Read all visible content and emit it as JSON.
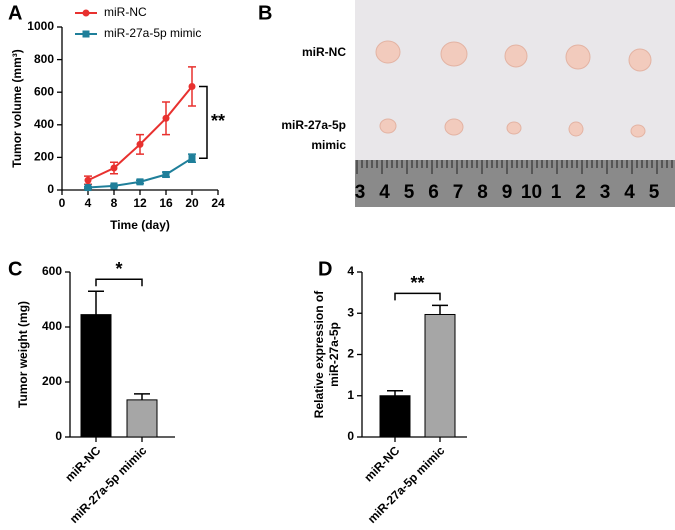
{
  "chart_data": [
    {
      "panel_label": "A",
      "type": "line",
      "xlabel": "Time (day)",
      "ylabel": "Tumor volume (mm³)",
      "x": [
        4,
        8,
        12,
        16,
        20
      ],
      "xlim": [
        0,
        24
      ],
      "xticks": [
        0,
        4,
        8,
        12,
        16,
        20,
        24
      ],
      "ylim": [
        0,
        1000
      ],
      "yticks": [
        0,
        200,
        400,
        600,
        800,
        1000
      ],
      "series": [
        {
          "name": "miR-NC",
          "color": "#e8312f",
          "values": [
            60,
            135,
            280,
            440,
            635
          ],
          "errors": [
            25,
            35,
            60,
            100,
            120
          ]
        },
        {
          "name": "miR-27a-5p mimic",
          "color": "#1f7f9a",
          "values": [
            15,
            25,
            50,
            95,
            195
          ],
          "errors": [
            5,
            5,
            10,
            15,
            25
          ]
        }
      ],
      "annotation": "**"
    },
    {
      "panel_label": "C",
      "type": "bar",
      "ylabel": "Tumor weight (mg)",
      "categories": [
        "miR-NC",
        "miR-27a-5p mimic"
      ],
      "values": [
        445,
        135
      ],
      "errors": [
        85,
        22
      ],
      "colors": [
        "#000000",
        "#a6a6a6"
      ],
      "ylim": [
        0,
        600
      ],
      "yticks": [
        0,
        200,
        400,
        600
      ],
      "annotation": "*"
    },
    {
      "panel_label": "D",
      "type": "bar",
      "ylabel": [
        "Relative expression of",
        "miR-27a-5p"
      ],
      "categories": [
        "miR-NC",
        "miR-27a-5p mimic"
      ],
      "values": [
        1.0,
        2.97
      ],
      "errors": [
        0.12,
        0.22
      ],
      "colors": [
        "#000000",
        "#a6a6a6"
      ],
      "ylim": [
        0,
        4
      ],
      "yticks": [
        0,
        1,
        2,
        3,
        4
      ],
      "annotation": "**"
    }
  ],
  "photo": {
    "panel_label": "B",
    "row_labels": [
      [
        "miR-NC"
      ],
      [
        "miR-27a-5p",
        "mimic"
      ]
    ],
    "ruler_labels": [
      "3",
      "4",
      "5",
      "6",
      "7",
      "8",
      "9",
      "10",
      "1",
      "2",
      "3",
      "4",
      "5"
    ]
  }
}
